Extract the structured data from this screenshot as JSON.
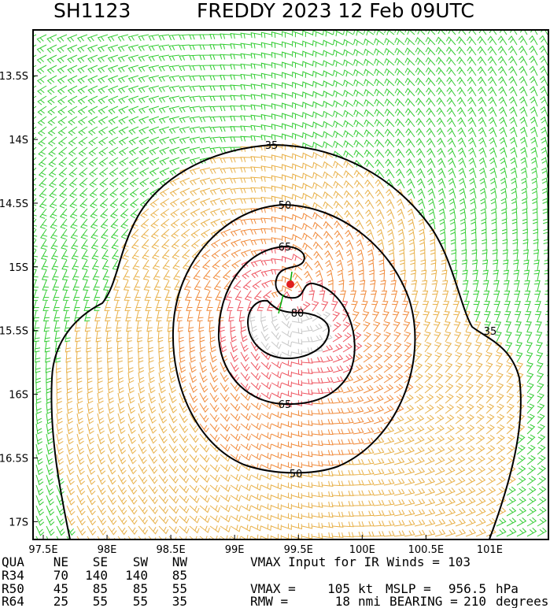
{
  "header": {
    "storm_id": "SH1123",
    "title": "FREDDY 2023 12 Feb 09UTC"
  },
  "map": {
    "lonlim": [
      97.42,
      101.46
    ],
    "latlim": [
      -13.14,
      -17.14
    ],
    "lat_ticks": [
      {
        "value": -13.5,
        "label": "13.5S"
      },
      {
        "value": -14,
        "label": "14S"
      },
      {
        "value": -14.5,
        "label": "14.5S"
      },
      {
        "value": -15,
        "label": "15S"
      },
      {
        "value": -15.5,
        "label": "15.5S"
      },
      {
        "value": -16,
        "label": "16S"
      },
      {
        "value": -16.5,
        "label": "16.5S"
      },
      {
        "value": -17,
        "label": "17S"
      }
    ],
    "lon_ticks": [
      {
        "value": 97.5,
        "label": "97.5E"
      },
      {
        "value": 98,
        "label": "98E"
      },
      {
        "value": 98.5,
        "label": "98.5E"
      },
      {
        "value": 99,
        "label": "99E"
      },
      {
        "value": 99.5,
        "label": "99.5E"
      },
      {
        "value": 100,
        "label": "100E"
      },
      {
        "value": 100.5,
        "label": "100.5E"
      },
      {
        "value": 101,
        "label": "101E"
      }
    ],
    "contours": [
      {
        "level": 35
      },
      {
        "level": 50
      },
      {
        "level": 65
      },
      {
        "level": 80
      }
    ]
  },
  "table": {
    "header": [
      "QUA",
      "NE",
      "SE",
      "SW",
      "NW"
    ],
    "rows": [
      [
        "R34",
        70,
        140,
        140,
        85
      ],
      [
        "R50",
        45,
        85,
        85,
        55
      ],
      [
        "R64",
        25,
        55,
        55,
        35
      ]
    ]
  },
  "info": {
    "ir_label": "VMAX Input for IR Winds =",
    "ir_value": 103,
    "vmax_label": "VMAX =",
    "vmax": 105,
    "vmax_unit": "kt",
    "mslp_label": "MSLP =",
    "mslp": 956.5,
    "mslp_unit": "hPa",
    "rmw_label": "RMW  =",
    "rmw": 18,
    "rmw_unit": "nmi",
    "bearing_label": "BEARING =",
    "bearing": 210,
    "bearing_unit": "degrees"
  }
}
